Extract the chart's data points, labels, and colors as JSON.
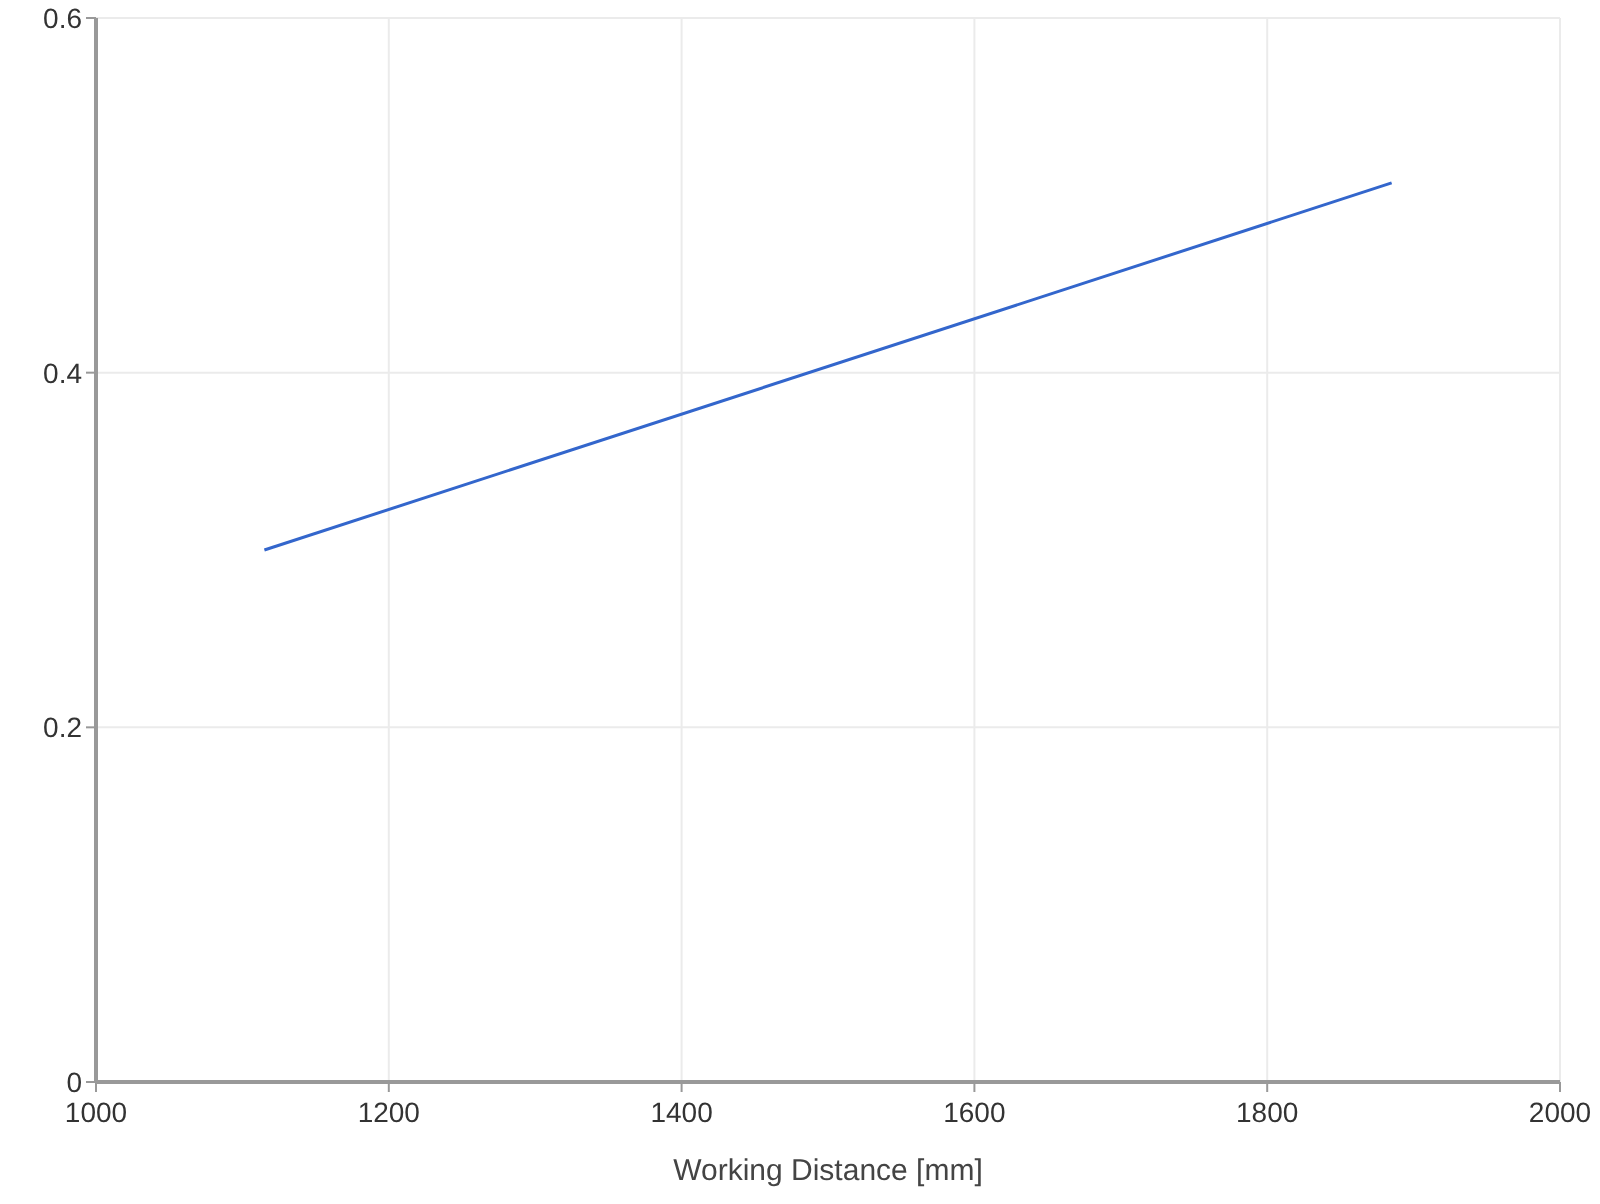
{
  "chart_data": {
    "type": "line",
    "xlabel": "Working Distance [mm]",
    "x": [
      1115,
      1885
    ],
    "series": [
      {
        "color": "#3366cc",
        "values": [
          0.3,
          0.507
        ]
      }
    ],
    "xlim": [
      1000,
      2000
    ],
    "xticks": [
      1000,
      1200,
      1400,
      1600,
      1800,
      2000
    ],
    "ylim": [
      0,
      0.6
    ],
    "yticks": [
      0,
      0.2,
      0.4,
      0.6
    ],
    "grid": true,
    "marker": "none",
    "line_style": "solid"
  }
}
